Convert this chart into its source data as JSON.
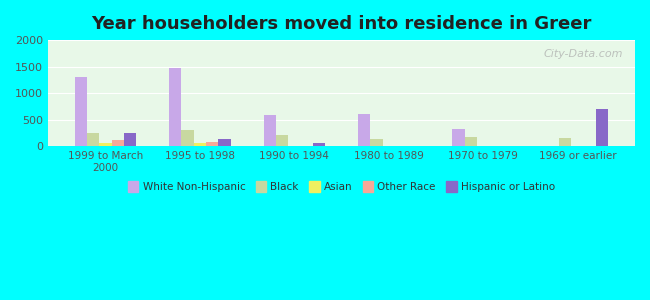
{
  "title": "Year householders moved into residence in Greer",
  "categories": [
    "1999 to March\n2000",
    "1995 to 1998",
    "1990 to 1994",
    "1980 to 1989",
    "1970 to 1979",
    "1969 or earlier"
  ],
  "series": {
    "White Non-Hispanic": [
      1300,
      1480,
      580,
      610,
      320,
      0
    ],
    "Black": [
      250,
      310,
      210,
      140,
      175,
      155
    ],
    "Asian": [
      55,
      50,
      0,
      0,
      0,
      0
    ],
    "Other Race": [
      110,
      70,
      0,
      0,
      0,
      0
    ],
    "Hispanic or Latino": [
      240,
      130,
      60,
      0,
      0,
      700
    ]
  },
  "colors": {
    "White Non-Hispanic": "#c8a8e8",
    "Black": "#c8d8a0",
    "Asian": "#f0f060",
    "Other Race": "#f8a898",
    "Hispanic or Latino": "#8868c8"
  },
  "ylim": [
    0,
    2000
  ],
  "yticks": [
    0,
    500,
    1000,
    1500,
    2000
  ],
  "background_plot": "#e8f8e8",
  "background_fig": "#00ffff",
  "watermark": "City-Data.com",
  "legend_order": [
    "White Non-Hispanic",
    "Black",
    "Asian",
    "Other Race",
    "Hispanic or Latino"
  ]
}
